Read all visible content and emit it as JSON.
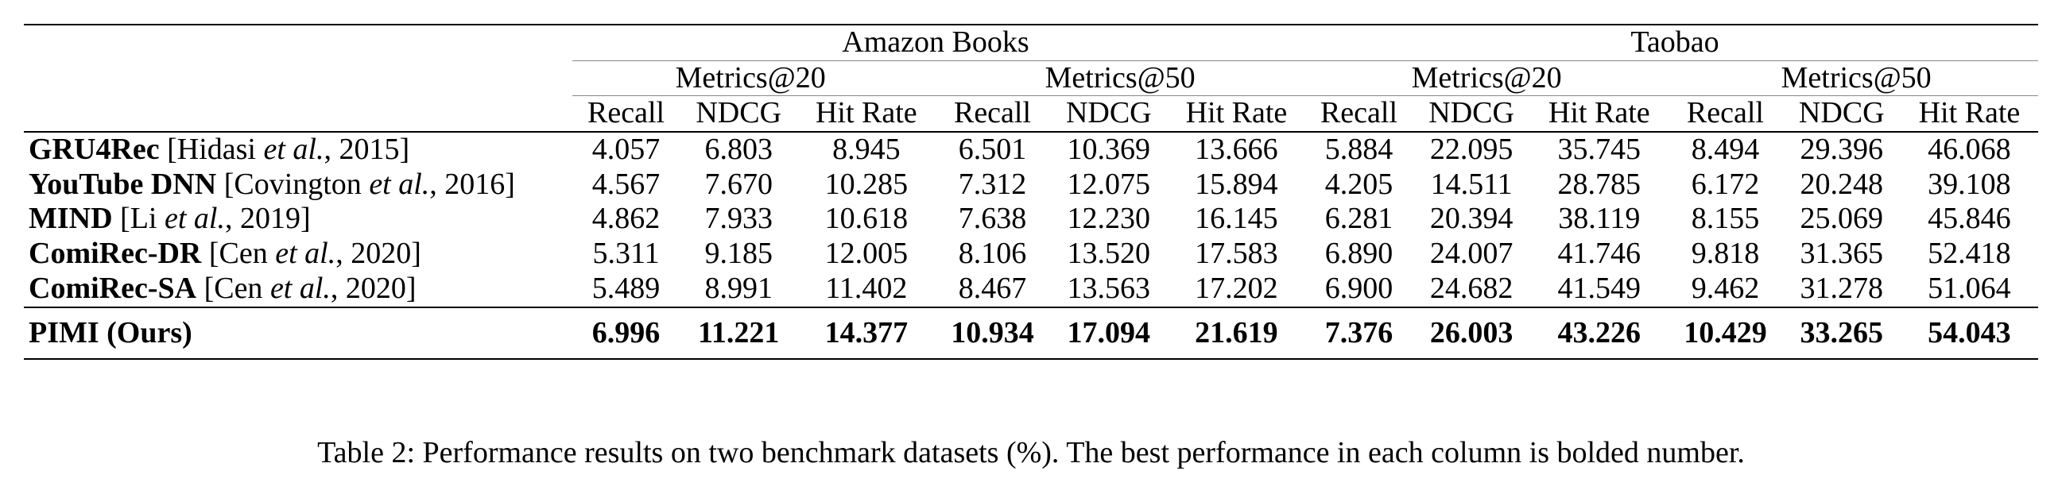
{
  "table": {
    "datasets": [
      "Amazon Books",
      "Taobao"
    ],
    "metric_groups": [
      "Metrics@20",
      "Metrics@50",
      "Metrics@20",
      "Metrics@50"
    ],
    "metrics": [
      "Recall",
      "NDCG",
      "Hit Rate",
      "Recall",
      "NDCG",
      "Hit Rate",
      "Recall",
      "NDCG",
      "Hit Rate",
      "Recall",
      "NDCG",
      "Hit Rate"
    ],
    "rows": [
      {
        "name": "GRU4Rec",
        "cite_pre": "[Hidasi ",
        "cite_it": "et al.",
        "cite_post": ", 2015]",
        "values": [
          "4.057",
          "6.803",
          "8.945",
          "6.501",
          "10.369",
          "13.666",
          "5.884",
          "22.095",
          "35.745",
          "8.494",
          "29.396",
          "46.068"
        ]
      },
      {
        "name": "YouTube DNN",
        "cite_pre": "[Covington ",
        "cite_it": "et al.",
        "cite_post": ", 2016]",
        "values": [
          "4.567",
          "7.670",
          "10.285",
          "7.312",
          "12.075",
          "15.894",
          "4.205",
          "14.511",
          "28.785",
          "6.172",
          "20.248",
          "39.108"
        ]
      },
      {
        "name": "MIND",
        "cite_pre": "[Li ",
        "cite_it": "et al.",
        "cite_post": ", 2019]",
        "values": [
          "4.862",
          "7.933",
          "10.618",
          "7.638",
          "12.230",
          "16.145",
          "6.281",
          "20.394",
          "38.119",
          "8.155",
          "25.069",
          "45.846"
        ]
      },
      {
        "name": "ComiRec-DR",
        "cite_pre": "[Cen ",
        "cite_it": "et al.",
        "cite_post": ", 2020]",
        "values": [
          "5.311",
          "9.185",
          "12.005",
          "8.106",
          "13.520",
          "17.583",
          "6.890",
          "24.007",
          "41.746",
          "9.818",
          "31.365",
          "52.418"
        ]
      },
      {
        "name": "ComiRec-SA",
        "cite_pre": "[Cen ",
        "cite_it": "et al.",
        "cite_post": ", 2020]",
        "values": [
          "5.489",
          "8.991",
          "11.402",
          "8.467",
          "13.563",
          "17.202",
          "6.900",
          "24.682",
          "41.549",
          "9.462",
          "31.278",
          "51.064"
        ]
      }
    ],
    "best_row": {
      "name": "PIMI (Ours)",
      "values": [
        "6.996",
        "11.221",
        "14.377",
        "10.934",
        "17.094",
        "21.619",
        "7.376",
        "26.003",
        "43.226",
        "10.429",
        "33.265",
        "54.043"
      ]
    }
  },
  "caption": "Table 2: Performance results on two benchmark datasets (%). The best performance in each column is bolded number."
}
